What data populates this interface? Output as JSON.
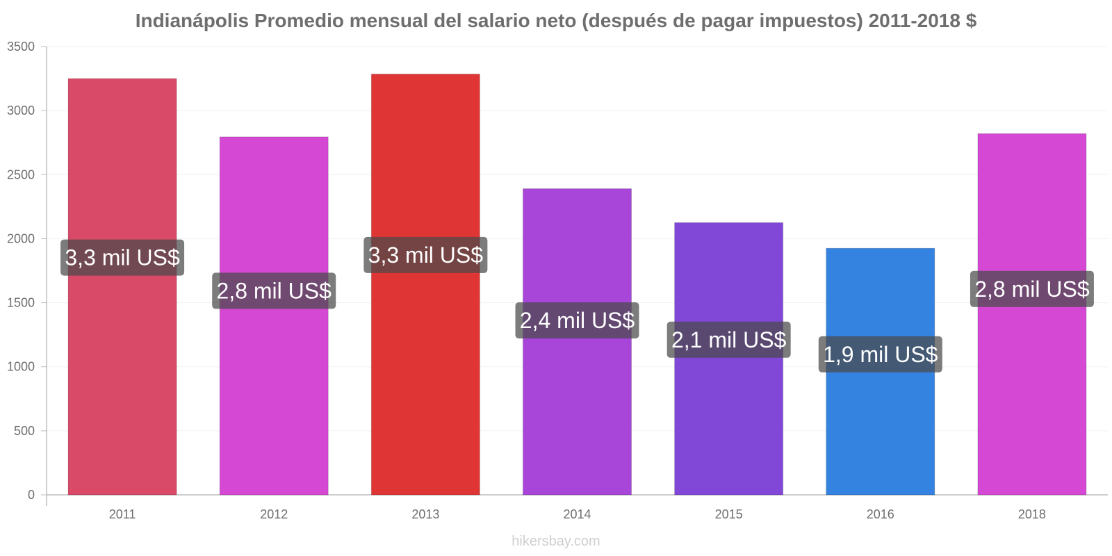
{
  "chart_data": {
    "type": "bar",
    "title": "Indianápolis Promedio mensual del salario neto (después de pagar impuestos) 2011-2018 $",
    "xlabel": "",
    "ylabel": "",
    "categories": [
      "2011",
      "2012",
      "2013",
      "2014",
      "2015",
      "2016",
      "2018"
    ],
    "values": [
      3250,
      2795,
      3285,
      2390,
      2125,
      1925,
      2820
    ],
    "data_labels": [
      "3,3 mil US$",
      "2,8 mil US$",
      "3,3 mil US$",
      "2,4 mil US$",
      "2,1 mil US$",
      "1,9 mil US$",
      "2,8 mil US$"
    ],
    "colors": [
      "#d84a68",
      "#d548d3",
      "#e03535",
      "#a746d8",
      "#8148d8",
      "#3583e0",
      "#d548d3"
    ],
    "label_box_color": "#4a4a4a",
    "ylim": [
      0,
      3500
    ],
    "yticks": [
      0,
      500,
      1000,
      1500,
      2000,
      2500,
      3000,
      3500
    ],
    "ytick_labels": [
      "0",
      "500",
      "1000",
      "1500",
      "2000",
      "2500",
      "3000",
      "3500"
    ],
    "grid": true,
    "legend": "none"
  },
  "footer": {
    "watermark": "hikersbay.com"
  }
}
